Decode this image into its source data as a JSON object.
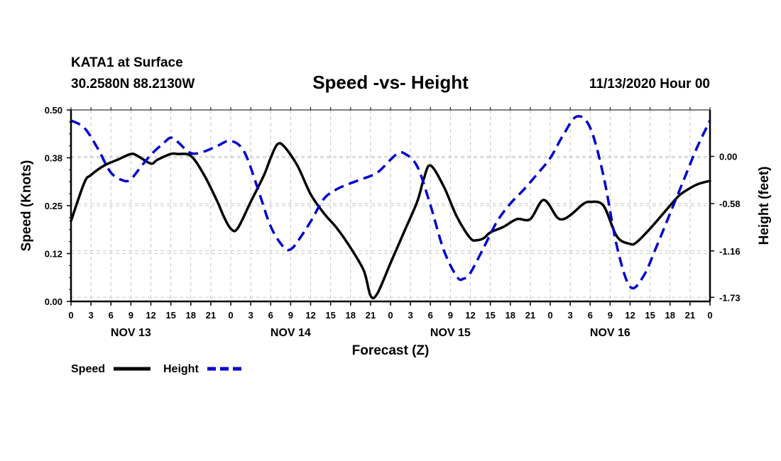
{
  "header": {
    "station": "KATA1 at Surface",
    "coords": "30.2580N 88.2130W",
    "title": "Speed -vs- Height",
    "date": "11/13/2020 Hour 00"
  },
  "chart_data": {
    "type": "line",
    "title": "Speed -vs- Height",
    "xlabel": "Forecast (Z)",
    "ylabel_left": "Speed (Knots)",
    "ylabel_right": "Height (feet)",
    "x_ticks": [
      "0",
      "3",
      "6",
      "9",
      "12",
      "15",
      "18",
      "21",
      "0",
      "3",
      "6",
      "9",
      "12",
      "15",
      "18",
      "21",
      "0",
      "3",
      "6",
      "9",
      "12",
      "15",
      "18",
      "21",
      "0",
      "3",
      "6",
      "9",
      "12",
      "15",
      "18",
      "21",
      "0"
    ],
    "day_labels": [
      "NOV 13",
      "NOV 14",
      "NOV 15",
      "NOV 16"
    ],
    "xlim": [
      0,
      96
    ],
    "y_left": {
      "ticks": [
        "0.00",
        "0.12",
        "0.25",
        "0.38",
        "0.50"
      ],
      "lim": [
        0,
        0.5
      ]
    },
    "y_right": {
      "ticks": [
        "0.00",
        "-0.58",
        "-1.16",
        "-1.73"
      ],
      "values": [
        0,
        -0.58,
        -1.16,
        -1.73
      ],
      "lim": [
        -1.78,
        0.57
      ]
    },
    "series": [
      {
        "name": "Speed",
        "axis": "left",
        "color": "#000000",
        "style": "solid",
        "x": [
          0,
          2,
          3,
          5,
          7,
          9,
          10,
          12,
          13,
          15,
          16,
          18,
          20,
          22,
          23,
          24,
          25,
          27,
          29,
          30,
          31,
          32,
          34,
          36,
          38,
          40,
          42,
          44,
          45,
          46,
          48,
          50,
          52,
          53,
          54,
          56,
          58,
          60,
          61,
          62,
          63,
          65,
          67,
          69,
          71,
          73,
          74,
          75,
          76,
          77,
          78,
          80,
          82,
          84,
          85,
          87,
          89,
          91,
          92,
          94,
          96
        ],
        "y": [
          0.21,
          0.31,
          0.33,
          0.355,
          0.37,
          0.385,
          0.38,
          0.36,
          0.37,
          0.385,
          0.385,
          0.38,
          0.33,
          0.26,
          0.22,
          0.19,
          0.19,
          0.26,
          0.33,
          0.375,
          0.41,
          0.405,
          0.355,
          0.28,
          0.23,
          0.19,
          0.14,
          0.08,
          0.015,
          0.02,
          0.1,
          0.18,
          0.26,
          0.32,
          0.355,
          0.3,
          0.22,
          0.165,
          0.16,
          0.165,
          0.18,
          0.195,
          0.215,
          0.215,
          0.265,
          0.22,
          0.215,
          0.225,
          0.24,
          0.255,
          0.26,
          0.25,
          0.17,
          0.15,
          0.155,
          0.19,
          0.23,
          0.27,
          0.285,
          0.305,
          0.315
        ]
      },
      {
        "name": "Height",
        "axis": "right",
        "color": "#0000cc",
        "style": "dashed",
        "x": [
          0,
          2,
          4,
          6,
          8,
          9,
          10,
          12,
          14,
          15,
          16,
          18,
          20,
          22,
          24,
          26,
          28,
          30,
          32,
          33,
          34,
          36,
          38,
          40,
          42,
          44,
          46,
          48,
          49,
          50,
          52,
          54,
          56,
          58,
          59,
          60,
          62,
          64,
          66,
          68,
          70,
          72,
          74,
          76,
          78,
          80,
          82,
          84,
          86,
          88,
          90,
          92,
          94,
          96
        ],
        "y": [
          0.44,
          0.35,
          0.1,
          -0.2,
          -0.3,
          -0.28,
          -0.18,
          0.02,
          0.17,
          0.23,
          0.18,
          0.04,
          0.06,
          0.13,
          0.19,
          0.06,
          -0.38,
          -0.86,
          -1.12,
          -1.14,
          -1.05,
          -0.8,
          -0.52,
          -0.4,
          -0.33,
          -0.27,
          -0.2,
          -0.04,
          0.03,
          0.04,
          -0.12,
          -0.6,
          -1.15,
          -1.48,
          -1.5,
          -1.43,
          -1.12,
          -0.8,
          -0.58,
          -0.41,
          -0.22,
          -0.02,
          0.27,
          0.49,
          0.35,
          -0.24,
          -1.1,
          -1.6,
          -1.47,
          -1.1,
          -0.7,
          -0.3,
          0.1,
          0.44
        ]
      }
    ],
    "legend": "bottom-left",
    "grid": true
  },
  "legend": {
    "speed_label": "Speed",
    "height_label": "Height"
  },
  "colors": {
    "speed": "#000000",
    "height": "#0000cc",
    "grid": "#c8c8c8"
  }
}
